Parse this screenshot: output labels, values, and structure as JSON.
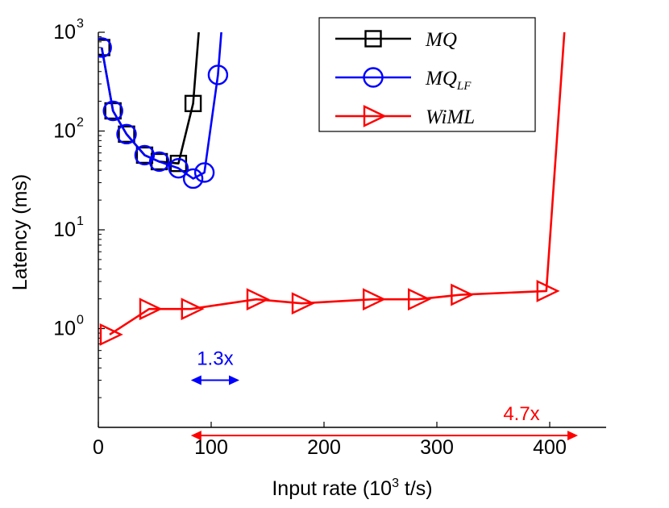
{
  "chart_data": {
    "type": "line",
    "title": "",
    "xlabel": "Input rate (10^3 t/s)",
    "xlabel_parts": {
      "before": "Input rate (10",
      "sup": "3",
      "after": " t/s)"
    },
    "ylabel": "Latency (ms)",
    "x_scale": "linear",
    "y_scale": "log",
    "xlim": [
      0,
      450
    ],
    "ylim": [
      0.1,
      1000
    ],
    "x_ticks": [
      {
        "value": 0,
        "label": "0"
      },
      {
        "value": 100,
        "label": "100"
      },
      {
        "value": 200,
        "label": "200"
      },
      {
        "value": 300,
        "label": "300"
      },
      {
        "value": 400,
        "label": "400"
      }
    ],
    "y_ticks": [
      {
        "value": 1,
        "base": "10",
        "exp": "0"
      },
      {
        "value": 10,
        "base": "10",
        "exp": "1"
      },
      {
        "value": 100,
        "base": "10",
        "exp": "2"
      },
      {
        "value": 1000,
        "base": "10",
        "exp": "3"
      }
    ],
    "legend_position": "top-right",
    "series": [
      {
        "name": "MQ",
        "legend_main": "MQ",
        "legend_sub": "",
        "color": "#000000",
        "marker": "square",
        "points": [
          [
            3,
            700
          ],
          [
            13,
            160
          ],
          [
            25,
            93
          ],
          [
            41,
            57
          ],
          [
            54,
            49
          ],
          [
            71,
            47
          ],
          [
            84,
            190
          ]
        ],
        "tail": [
          89,
          1000
        ]
      },
      {
        "name": "MQ_LF",
        "legend_main": "MQ",
        "legend_sub": "LF",
        "color": "#0000ff",
        "marker": "circle",
        "points": [
          [
            3,
            700
          ],
          [
            13,
            160
          ],
          [
            25,
            93
          ],
          [
            41,
            57
          ],
          [
            54,
            49
          ],
          [
            71,
            42
          ],
          [
            84,
            33
          ],
          [
            94,
            38
          ],
          [
            106,
            370
          ]
        ],
        "tail": [
          109,
          1000
        ]
      },
      {
        "name": "WiML",
        "legend_main": "WiML",
        "legend_sub": "",
        "color": "#ff0000",
        "marker": "triangle-right",
        "points": [
          [
            10,
            0.87
          ],
          [
            45,
            1.58
          ],
          [
            82,
            1.58
          ],
          [
            140,
            1.98
          ],
          [
            180,
            1.8
          ],
          [
            243,
            1.98
          ],
          [
            283,
            1.98
          ],
          [
            321,
            2.2
          ],
          [
            397,
            2.4
          ]
        ],
        "tail": [
          413,
          1000
        ]
      }
    ],
    "annotations": [
      {
        "text": "1.3x",
        "color": "#0000ff",
        "x_from": 82,
        "x_to": 125,
        "y": 0.3
      },
      {
        "text": "4.7x",
        "color": "#ff0000",
        "x_from": 82,
        "x_to": 425,
        "y": 0.0826
      }
    ]
  }
}
